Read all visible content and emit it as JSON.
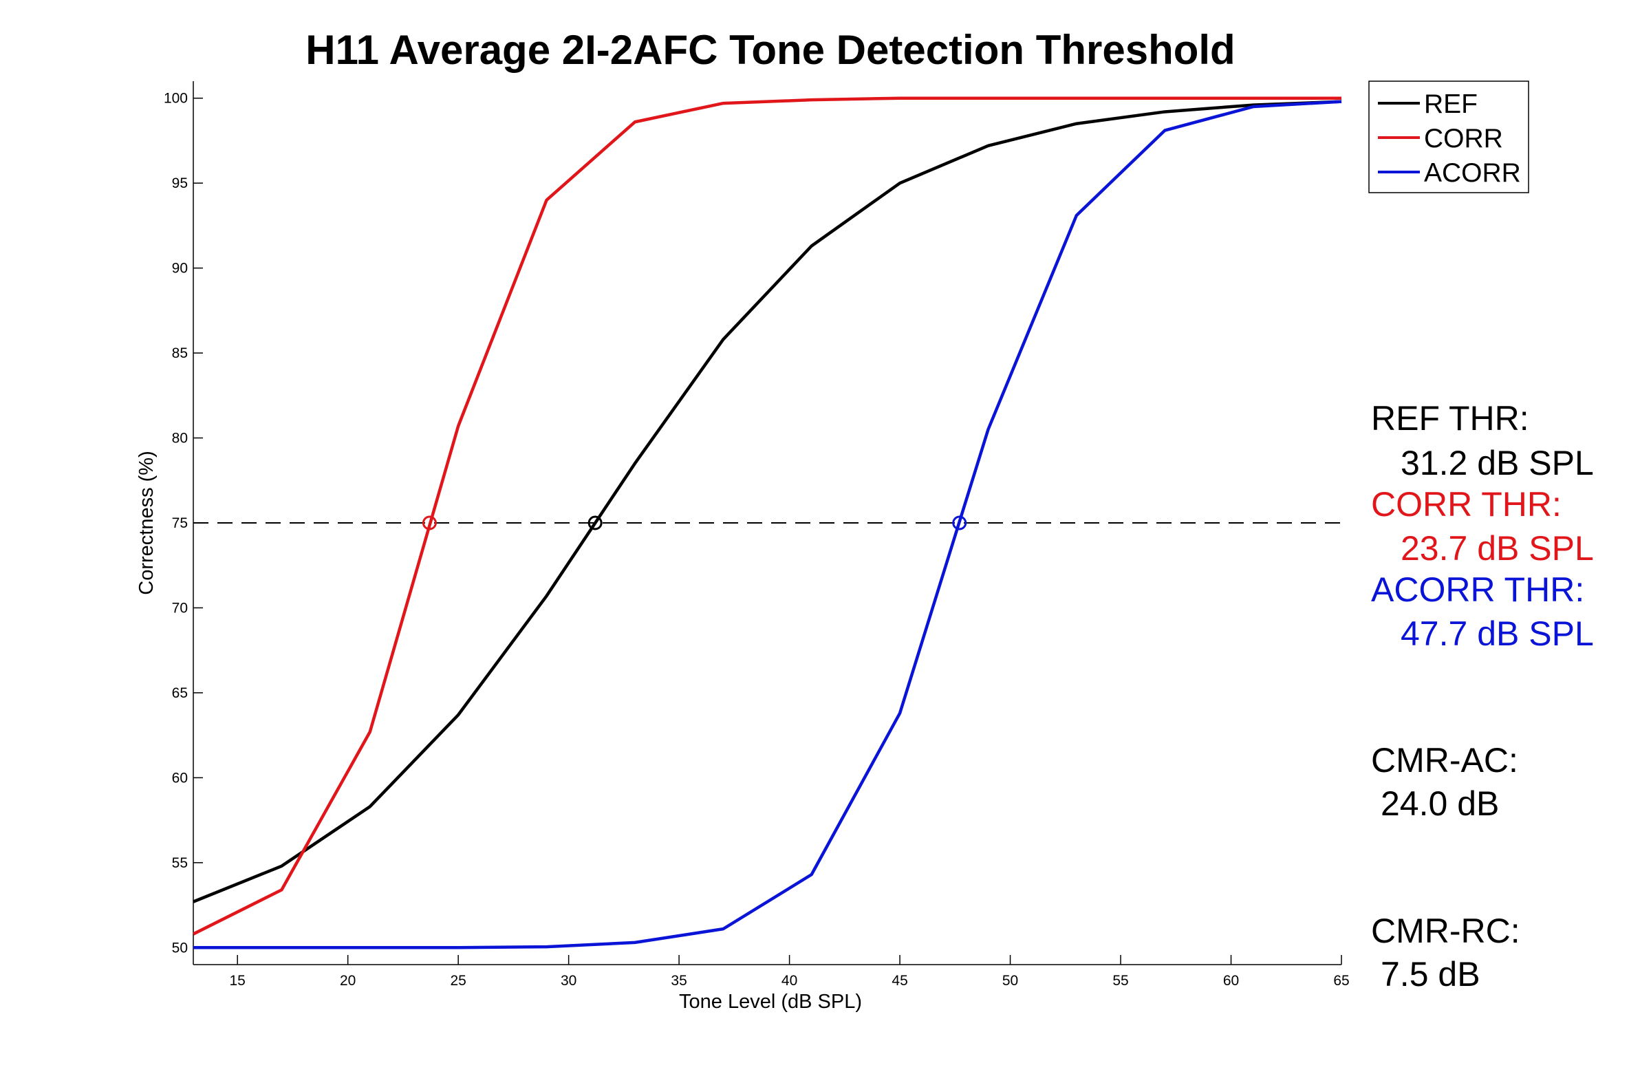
{
  "chart_data": {
    "type": "line",
    "title": "H11 Average 2I-2AFC Tone Detection Threshold",
    "xlabel": "Tone Level (dB SPL)",
    "ylabel": "Correctness (%)",
    "xlim": [
      13,
      65
    ],
    "ylim": [
      49,
      101
    ],
    "xticks": [
      15,
      20,
      25,
      30,
      35,
      40,
      45,
      50,
      55,
      60,
      65
    ],
    "yticks": [
      50,
      55,
      60,
      65,
      70,
      75,
      80,
      85,
      90,
      95,
      100
    ],
    "grid": false,
    "legend_position": "top-right",
    "reference_line": {
      "y": 75,
      "style": "dashed"
    },
    "series": [
      {
        "name": "REF",
        "color": "#000000",
        "x": [
          13,
          17,
          21,
          25,
          29,
          33,
          37,
          41,
          45,
          49,
          53,
          57,
          61,
          65
        ],
        "y": [
          52.7,
          54.8,
          58.3,
          63.7,
          70.7,
          78.5,
          85.8,
          91.3,
          95.0,
          97.2,
          98.5,
          99.2,
          99.6,
          99.8
        ]
      },
      {
        "name": "CORR",
        "color": "#e0161b",
        "x": [
          13,
          17,
          21,
          25,
          29,
          33,
          37,
          41,
          45,
          49,
          53,
          57,
          61,
          65
        ],
        "y": [
          50.8,
          53.4,
          62.7,
          80.7,
          94.0,
          98.6,
          99.7,
          99.9,
          100.0,
          100.0,
          100.0,
          100.0,
          100.0,
          100.0
        ]
      },
      {
        "name": "ACORR",
        "color": "#0a14d6",
        "x": [
          13,
          17,
          21,
          25,
          29,
          33,
          37,
          41,
          45,
          49,
          53,
          57,
          61,
          65
        ],
        "y": [
          50.0,
          50.0,
          50.0,
          50.0,
          50.05,
          50.3,
          51.1,
          54.3,
          63.8,
          80.5,
          93.1,
          98.1,
          99.5,
          99.8
        ]
      }
    ],
    "threshold_points": [
      {
        "series": "REF",
        "x": 31.2,
        "y": 75,
        "color": "#000000"
      },
      {
        "series": "CORR",
        "x": 23.7,
        "y": 75,
        "color": "#e0161b"
      },
      {
        "series": "ACORR",
        "x": 47.7,
        "y": 75,
        "color": "#0a14d6"
      }
    ],
    "annotations": {
      "ref_thr_label": "REF THR:",
      "ref_thr_value": "31.2 dB SPL",
      "corr_thr_label": "CORR THR:",
      "corr_thr_value": "23.7 dB SPL",
      "acorr_thr_label": "ACORR THR:",
      "acorr_thr_value": "47.7 dB SPL",
      "cmr_ac_label": "CMR-AC:",
      "cmr_ac_value": "24.0 dB",
      "cmr_rc_label": "CMR-RC:",
      "cmr_rc_value": "7.5 dB"
    }
  }
}
